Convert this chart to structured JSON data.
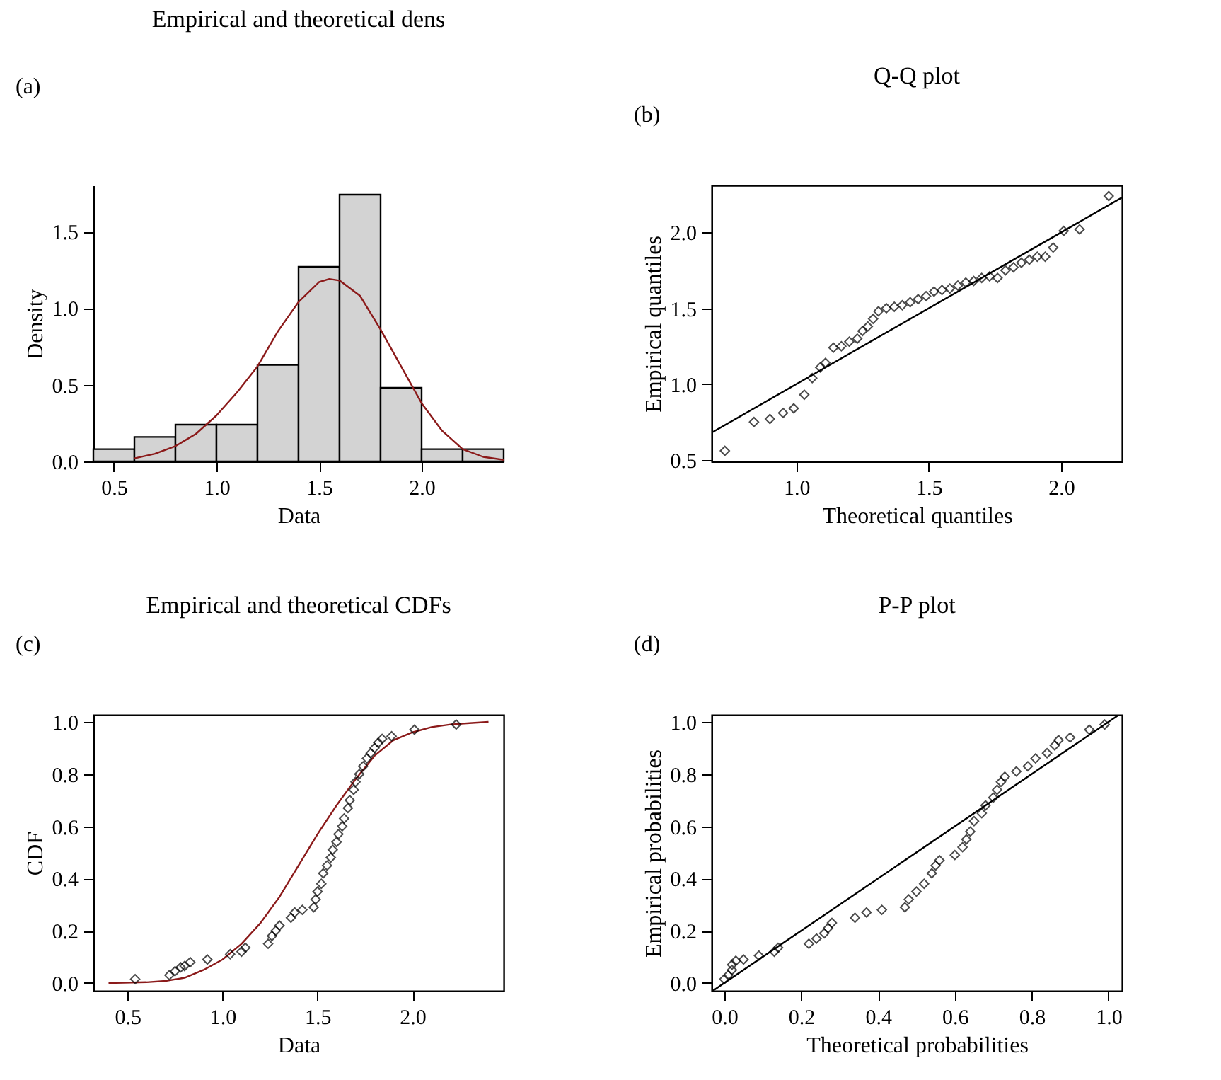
{
  "chart_data": [
    {
      "type": "histogram",
      "title": "Empirical and theoretical dens",
      "xlabel": "Data",
      "ylabel": "Density",
      "annotations": [
        "(a)"
      ],
      "grid": false,
      "color": "#d3d3d3",
      "bins": [
        0.4,
        0.6,
        0.8,
        1.0,
        1.2,
        1.4,
        1.6,
        1.8,
        2.0,
        2.2,
        2.4
      ],
      "values": [
        0.08,
        0.16,
        0.24,
        0.24,
        0.63,
        1.27,
        1.74,
        0.48,
        0.08,
        0.08
      ],
      "xlim": [
        0.4,
        2.4
      ],
      "ylim": [
        0,
        1.8
      ],
      "xticks": [
        0.5,
        {
          "value": 1,
          "label": "1.0"
        },
        1.5,
        {
          "value": 2,
          "label": "2.0"
        }
      ],
      "yticks": [
        {
          "value": 0,
          "label": "0.0"
        },
        0.5,
        {
          "value": 1,
          "label": "1.0"
        },
        1.5
      ],
      "series": [
        {
          "type": "line",
          "color": "#8b1a1a",
          "x": [
            0.6,
            0.7,
            0.8,
            0.9,
            1.0,
            1.1,
            1.2,
            1.3,
            1.4,
            1.5,
            1.55,
            1.6,
            1.7,
            1.8,
            1.9,
            2.0,
            2.1,
            2.2,
            2.3,
            2.4
          ],
          "values": [
            0.02,
            0.05,
            0.1,
            0.18,
            0.3,
            0.45,
            0.62,
            0.85,
            1.04,
            1.17,
            1.19,
            1.18,
            1.08,
            0.86,
            0.62,
            0.38,
            0.2,
            0.08,
            0.03,
            0.01
          ]
        }
      ]
    },
    {
      "type": "scatter",
      "title": "Q-Q plot",
      "xlabel": "Theoretical quantiles",
      "ylabel": "Empirical quantiles",
      "annotations": [
        "(b)"
      ],
      "grid": false,
      "xlim": [
        0.68,
        2.23
      ],
      "ylim": [
        0.49,
        2.31
      ],
      "xticks": [
        {
          "value": 1,
          "label": "1.0"
        },
        1.5,
        {
          "value": 2,
          "label": "2.0"
        }
      ],
      "yticks": [
        0.5,
        {
          "value": 1,
          "label": "1.0"
        },
        1.5,
        {
          "value": 2,
          "label": "2.0"
        }
      ],
      "series": [
        {
          "type": "scatter",
          "marker": "diamond",
          "color": "#000000",
          "x": [
            0.73,
            0.84,
            0.9,
            0.95,
            0.99,
            1.03,
            1.06,
            1.09,
            1.11,
            1.14,
            1.17,
            1.2,
            1.23,
            1.25,
            1.27,
            1.29,
            1.31,
            1.34,
            1.37,
            1.4,
            1.43,
            1.46,
            1.49,
            1.52,
            1.55,
            1.58,
            1.61,
            1.64,
            1.67,
            1.7,
            1.73,
            1.76,
            1.79,
            1.82,
            1.85,
            1.88,
            1.91,
            1.94,
            1.97,
            2.01,
            2.07,
            2.18
          ],
          "values": [
            0.56,
            0.75,
            0.77,
            0.81,
            0.84,
            0.93,
            1.04,
            1.11,
            1.14,
            1.24,
            1.25,
            1.28,
            1.3,
            1.35,
            1.38,
            1.43,
            1.48,
            1.5,
            1.51,
            1.52,
            1.54,
            1.56,
            1.58,
            1.61,
            1.62,
            1.63,
            1.65,
            1.67,
            1.68,
            1.7,
            1.71,
            1.7,
            1.75,
            1.77,
            1.8,
            1.82,
            1.84,
            1.84,
            1.9,
            2.01,
            2.02,
            2.24
          ]
        },
        {
          "type": "line",
          "color": "#000000",
          "x": [
            0.68,
            2.23
          ],
          "values": [
            0.68,
            2.23
          ]
        }
      ]
    },
    {
      "type": "scatter",
      "title": "Empirical and theoretical CDFs",
      "xlabel": "Data",
      "ylabel": "CDF",
      "annotations": [
        "(c)"
      ],
      "grid": false,
      "xlim": [
        0.32,
        2.48
      ],
      "ylim": [
        -0.03,
        1.027
      ],
      "xticks": [
        0.5,
        {
          "value": 1,
          "label": "1.0"
        },
        1.5,
        {
          "value": 2,
          "label": "2.0"
        }
      ],
      "yticks": [
        {
          "value": 0,
          "label": "0.0"
        },
        0.2,
        0.4,
        0.6,
        0.8,
        {
          "value": 1,
          "label": "1.0"
        }
      ],
      "series": [
        {
          "type": "line",
          "color": "#8b1a1a",
          "x": [
            0.4,
            0.6,
            0.7,
            0.8,
            0.9,
            1.0,
            1.1,
            1.2,
            1.3,
            1.4,
            1.5,
            1.6,
            1.7,
            1.8,
            1.9,
            2.0,
            2.1,
            2.2,
            2.3,
            2.4
          ],
          "values": [
            0.0,
            0.003,
            0.008,
            0.02,
            0.05,
            0.09,
            0.15,
            0.23,
            0.33,
            0.45,
            0.57,
            0.68,
            0.78,
            0.87,
            0.93,
            0.96,
            0.98,
            0.99,
            0.995,
            1.0
          ]
        },
        {
          "type": "scatter",
          "marker": "diamond",
          "color": "#000000",
          "x": [
            0.54,
            0.72,
            0.75,
            0.78,
            0.8,
            0.83,
            0.92,
            1.04,
            1.1,
            1.12,
            1.24,
            1.26,
            1.28,
            1.3,
            1.36,
            1.38,
            1.42,
            1.48,
            1.49,
            1.5,
            1.52,
            1.53,
            1.55,
            1.57,
            1.58,
            1.6,
            1.61,
            1.63,
            1.64,
            1.66,
            1.67,
            1.69,
            1.7,
            1.72,
            1.74,
            1.76,
            1.78,
            1.8,
            1.82,
            1.84,
            1.89,
            2.01,
            2.23
          ],
          "values": [
            0.015,
            0.03,
            0.045,
            0.06,
            0.065,
            0.08,
            0.09,
            0.11,
            0.12,
            0.135,
            0.15,
            0.18,
            0.2,
            0.22,
            0.25,
            0.27,
            0.28,
            0.29,
            0.32,
            0.35,
            0.38,
            0.42,
            0.45,
            0.48,
            0.51,
            0.54,
            0.57,
            0.6,
            0.63,
            0.67,
            0.7,
            0.74,
            0.77,
            0.8,
            0.83,
            0.86,
            0.88,
            0.9,
            0.92,
            0.935,
            0.945,
            0.97,
            0.99
          ]
        }
      ]
    },
    {
      "type": "scatter",
      "title": "P-P plot",
      "xlabel": "Theoretical probabilities",
      "ylabel": "Empirical probabilities",
      "annotations": [
        "(d)"
      ],
      "grid": false,
      "xlim": [
        -0.033,
        1.035
      ],
      "ylim": [
        -0.03,
        1.027
      ],
      "xticks": [
        {
          "value": 0,
          "label": "0.0"
        },
        0.2,
        0.4,
        0.6,
        0.8,
        {
          "value": 1,
          "label": "1.0"
        }
      ],
      "yticks": [
        {
          "value": 0,
          "label": "0.0"
        },
        0.2,
        0.4,
        0.6,
        0.8,
        {
          "value": 1,
          "label": "1.0"
        }
      ],
      "series": [
        {
          "type": "scatter",
          "marker": "diamond",
          "color": "#000000",
          "x": [
            0.0,
            0.01,
            0.02,
            0.02,
            0.03,
            0.05,
            0.09,
            0.13,
            0.14,
            0.22,
            0.24,
            0.26,
            0.27,
            0.28,
            0.34,
            0.37,
            0.41,
            0.47,
            0.48,
            0.5,
            0.52,
            0.54,
            0.55,
            0.56,
            0.6,
            0.62,
            0.63,
            0.64,
            0.65,
            0.67,
            0.68,
            0.7,
            0.71,
            0.72,
            0.73,
            0.76,
            0.79,
            0.81,
            0.84,
            0.86,
            0.87,
            0.9,
            0.95,
            0.99
          ],
          "values": [
            0.015,
            0.03,
            0.05,
            0.07,
            0.085,
            0.09,
            0.105,
            0.12,
            0.135,
            0.15,
            0.17,
            0.19,
            0.21,
            0.23,
            0.25,
            0.27,
            0.28,
            0.29,
            0.32,
            0.35,
            0.38,
            0.42,
            0.45,
            0.47,
            0.49,
            0.52,
            0.55,
            0.58,
            0.62,
            0.65,
            0.68,
            0.71,
            0.74,
            0.77,
            0.79,
            0.81,
            0.83,
            0.86,
            0.88,
            0.91,
            0.93,
            0.94,
            0.97,
            0.99
          ]
        },
        {
          "type": "line",
          "color": "#000000",
          "x": [
            -0.03,
            1.027
          ],
          "values": [
            -0.03,
            1.027
          ]
        }
      ]
    }
  ]
}
